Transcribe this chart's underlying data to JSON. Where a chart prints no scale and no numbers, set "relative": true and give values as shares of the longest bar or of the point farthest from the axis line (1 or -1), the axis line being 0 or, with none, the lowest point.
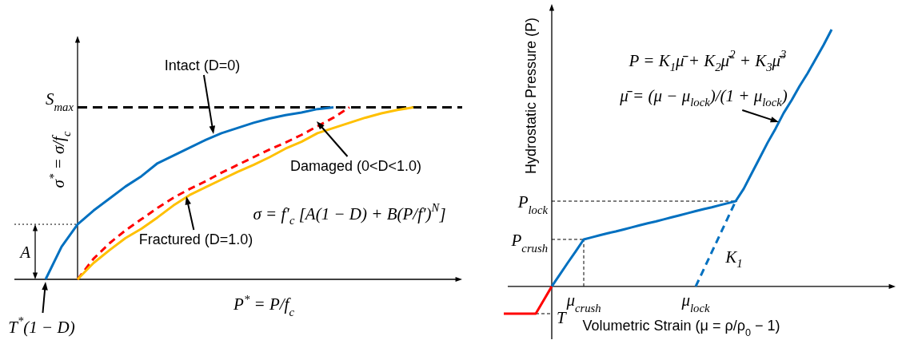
{
  "chart_data": [
    {
      "type": "line",
      "relative": true,
      "xlabel": "P$^{*}$ = P/f$_{c}$",
      "ylabel": "σ$^{*}$ = σ/f$_{c}$",
      "categories": [
        null,
        null,
        null,
        null,
        null,
        null,
        null,
        null,
        null,
        null,
        null,
        null,
        null,
        null,
        null,
        null,
        null,
        null,
        null,
        null,
        null,
        null,
        null,
        null
      ],
      "series": [
        {
          "color": "#0070c0",
          "values": [
            0,
            0.19,
            0.32,
            0.4,
            0.47,
            0.54,
            0.6,
            0.675,
            0.72,
            0.765,
            0.81,
            0.85,
            0.88,
            0.91,
            0.935,
            0.955,
            0.97,
            0.99,
            1,
            null,
            null,
            null,
            null,
            null
          ]
        },
        {
          "color": "#ff0000",
          "line_style": "dashed",
          "values": [
            null,
            null,
            0,
            0.12,
            0.21,
            0.285,
            0.35,
            0.415,
            0.475,
            0.525,
            0.57,
            0.62,
            0.665,
            0.71,
            0.755,
            0.795,
            0.84,
            0.89,
            0.94,
            1,
            null,
            null,
            null,
            null
          ]
        },
        {
          "color": "#ffc000",
          "values": [
            null,
            null,
            0,
            0.095,
            0.17,
            0.24,
            0.295,
            0.36,
            0.43,
            0.49,
            0.535,
            0.58,
            0.625,
            0.665,
            0.71,
            0.76,
            0.8,
            0.85,
            0.88,
            0.91,
            0.94,
            0.965,
            0.985,
            1
          ]
        }
      ],
      "ref_lines": [
        {
          "axis": "y",
          "value": 1,
          "label": "S$_{max}$",
          "line_style": "dashed",
          "color": "#000000"
        },
        {
          "axis": "y",
          "value": 0.32,
          "label": "A",
          "line_style": "dotted",
          "color": "#000000"
        }
      ],
      "annotations": [
        "Intact (D=0)",
        "Damaged (0<D<1.0)",
        "Fractured (D=1.0)",
        "T$^{*}$(1 − D)",
        "σ = f′$_{c}$ [A(1 − D) + B(P/f′)$^{N}$]"
      ]
    },
    {
      "type": "line",
      "relative": true,
      "xlabel": "Volumetric Strain (μ = ρ/ρ$_{0}$ − 1)",
      "ylabel": "Hydrostatic Pressure (P)",
      "categories": [
        null,
        null,
        null,
        null,
        null,
        null,
        null,
        null,
        null,
        null,
        "μ$_{crush}$",
        null,
        null,
        null,
        null,
        null,
        null,
        null,
        null,
        null,
        null,
        null,
        null,
        null,
        "μ$_{lock}$",
        null,
        null,
        null,
        null,
        null,
        null,
        null,
        null,
        null,
        null,
        null,
        null,
        null,
        null,
        null,
        null,
        null
      ],
      "series": [
        {
          "color": "#0070c0",
          "values": [
            null,
            null,
            null,
            null,
            null,
            null,
            0,
            0.046,
            0.092,
            0.137,
            0.183,
            0.191,
            0.199,
            0.207,
            0.214,
            0.222,
            0.23,
            0.238,
            0.246,
            0.253,
            0.261,
            0.269,
            0.277,
            0.285,
            0.293,
            0.301,
            0.308,
            0.316,
            0.324,
            0.332,
            0.38,
            0.44,
            0.5,
            0.56,
            0.615,
            0.675,
            0.725,
            0.78,
            0.83,
            0.885,
            0.94,
            1
          ]
        },
        {
          "color": "#0070c0",
          "line_style": "dashed",
          "values": [
            null,
            null,
            null,
            null,
            null,
            null,
            null,
            null,
            null,
            null,
            null,
            null,
            null,
            null,
            null,
            null,
            null,
            null,
            null,
            null,
            null,
            null,
            null,
            null,
            0,
            0.066,
            0.133,
            0.199,
            0.266,
            0.332,
            null,
            null,
            null,
            null,
            null,
            null,
            null,
            null,
            null,
            null,
            null,
            null
          ]
        },
        {
          "color": "#ff0000",
          "values": [
            -0.106,
            -0.106,
            -0.106,
            -0.106,
            -0.106,
            -0.053,
            0,
            null,
            null,
            null,
            null,
            null,
            null,
            null,
            null,
            null,
            null,
            null,
            null,
            null,
            null,
            null,
            null,
            null,
            null,
            null,
            null,
            null,
            null,
            null,
            null,
            null,
            null,
            null,
            null,
            null,
            null,
            null,
            null,
            null,
            null,
            null
          ]
        }
      ],
      "ref_lines": [
        {
          "axis": "y",
          "value": 0.332,
          "label": "P$_{lock}$",
          "line_style": "dashed",
          "color": "#000000"
        },
        {
          "axis": "y",
          "value": 0.183,
          "label": "P$_{crush}$",
          "line_style": "dashed",
          "color": "#000000"
        },
        {
          "axis": "y",
          "value": -0.106,
          "label": "T",
          "line_style": "dashed",
          "color": "#000000"
        }
      ],
      "annotations": [
        "P = K$_{1}$μ̄ + K$_{2}$μ̄$^{2}$ + K$_{3}$μ̄$^{3}$",
        "μ̄ = (μ − μ$_{lock}$)/(1 + μ$_{lock}$)",
        "K$_{1}$"
      ]
    }
  ]
}
